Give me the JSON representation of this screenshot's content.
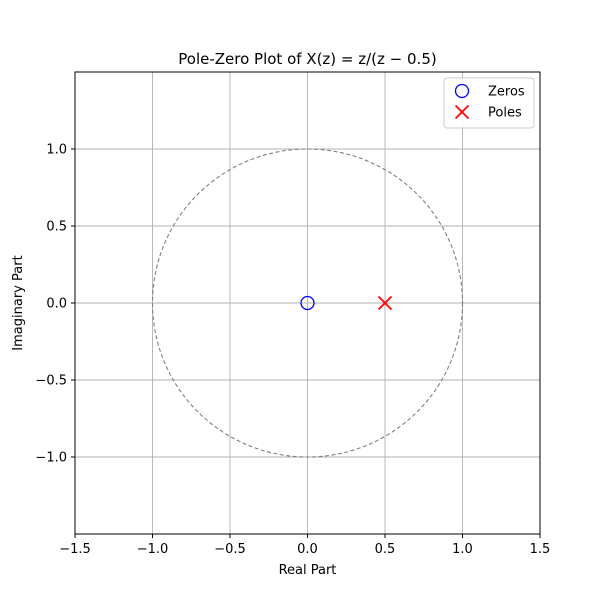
{
  "chart_data": {
    "type": "scatter",
    "title": "Pole-Zero Plot of X(z) = z/(z − 0.5)",
    "xlabel": "Real Part",
    "ylabel": "Imaginary Part",
    "xlim": [
      -1.5,
      1.5
    ],
    "ylim": [
      -1.5,
      1.5
    ],
    "grid": true,
    "xticks": [
      -1.5,
      -1.0,
      -0.5,
      0.0,
      0.5,
      1.0,
      1.5
    ],
    "yticks": [
      -1.0,
      -0.5,
      0.0,
      0.5,
      1.0
    ],
    "xtick_labels": [
      "−1.5",
      "−1.0",
      "−0.5",
      "0.0",
      "0.5",
      "1.0",
      "1.5"
    ],
    "ytick_labels": [
      "−1.0",
      "−0.5",
      "0.0",
      "0.5",
      "1.0"
    ],
    "unit_circle": {
      "radius": 1.0,
      "style": "dashed",
      "color": "#808080"
    },
    "legend_position": "upper-right",
    "series": [
      {
        "name": "Zeros",
        "marker": "circle",
        "color": "#0000ff",
        "points": [
          {
            "x": 0.0,
            "y": 0.0
          }
        ]
      },
      {
        "name": "Poles",
        "marker": "x",
        "color": "#ff0000",
        "points": [
          {
            "x": 0.5,
            "y": 0.0
          }
        ]
      }
    ]
  }
}
